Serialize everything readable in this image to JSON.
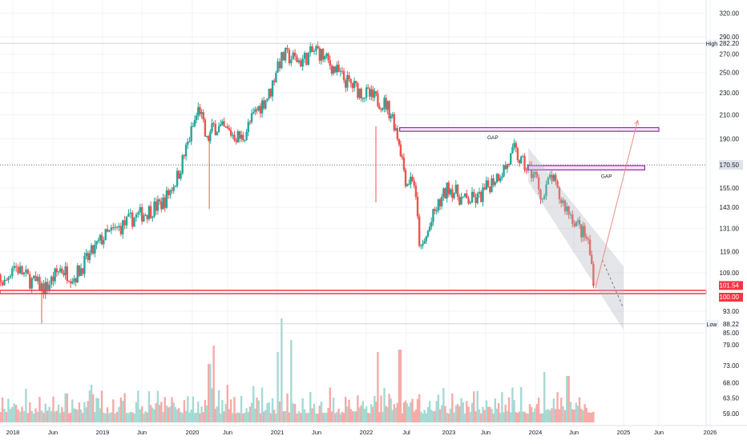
{
  "chart_data": {
    "type": "candlestick",
    "scale": "log",
    "grid": true,
    "y_ticks": [
      "320.00",
      "290.00",
      "270.00",
      "250.00",
      "230.00",
      "210.00",
      "190.00",
      "170.00",
      "155.00",
      "143.00",
      "131.00",
      "119.00",
      "109.00",
      "101.54",
      "100.00",
      "93.00",
      "85.00"
    ],
    "y_tick_values": [
      320,
      290,
      270,
      250,
      230,
      210,
      190,
      170,
      155,
      143,
      131,
      119,
      109,
      101.54,
      100,
      93,
      85
    ],
    "x_ticks": [
      "2018",
      "Jun",
      "2019",
      "Jun",
      "2020",
      "Jun",
      "2021",
      "Jun",
      "2022",
      "Jul",
      "2023",
      "Jun",
      "2024",
      "Jun",
      "2025",
      "Jun",
      "2026"
    ],
    "price_labels": {
      "high_tag": "High",
      "high_value": "282.20",
      "low_tag": "Low",
      "low_value": "88.22",
      "last_value": "170.50",
      "current_value": "101.54",
      "support_value": "100.00"
    },
    "volume_ticks": [
      "79.00",
      "73.00",
      "68.00",
      "63.50",
      "59.00"
    ],
    "volume_tick_values": [
      79,
      73,
      68,
      63.5,
      59
    ],
    "annotations": [
      {
        "type": "gap",
        "label": "GAP",
        "price_low": 196,
        "price_high": 199,
        "from": "2022-06",
        "to": "2025-06"
      },
      {
        "type": "gap",
        "label": "GAP",
        "price_low": 167,
        "price_high": 170,
        "from": "2023-12",
        "to": "2025-04"
      }
    ],
    "price_path": [
      {
        "date": "2017-10",
        "price": 111
      },
      {
        "date": "2017-12",
        "price": 104
      },
      {
        "date": "2018-01",
        "price": 113
      },
      {
        "date": "2018-03",
        "price": 106
      },
      {
        "date": "2018-05",
        "price": 102
      },
      {
        "date": "2018-07",
        "price": 111
      },
      {
        "date": "2018-09",
        "price": 107
      },
      {
        "date": "2018-11",
        "price": 116
      },
      {
        "date": "2019-01",
        "price": 126
      },
      {
        "date": "2019-03",
        "price": 131
      },
      {
        "date": "2019-05",
        "price": 137
      },
      {
        "date": "2019-07",
        "price": 141
      },
      {
        "date": "2019-09",
        "price": 146
      },
      {
        "date": "2019-11",
        "price": 163
      },
      {
        "date": "2020-01",
        "price": 198
      },
      {
        "date": "2020-02",
        "price": 217
      },
      {
        "date": "2020-03",
        "price": 187
      },
      {
        "date": "2020-04",
        "price": 200
      },
      {
        "date": "2020-06",
        "price": 196
      },
      {
        "date": "2020-08",
        "price": 190
      },
      {
        "date": "2020-10",
        "price": 213
      },
      {
        "date": "2020-12",
        "price": 230
      },
      {
        "date": "2021-01",
        "price": 259
      },
      {
        "date": "2021-02",
        "price": 268
      },
      {
        "date": "2021-04",
        "price": 262
      },
      {
        "date": "2021-06",
        "price": 275
      },
      {
        "date": "2021-08",
        "price": 258
      },
      {
        "date": "2021-10",
        "price": 242
      },
      {
        "date": "2021-12",
        "price": 232
      },
      {
        "date": "2022-02",
        "price": 225
      },
      {
        "date": "2022-04",
        "price": 219
      },
      {
        "date": "2022-05",
        "price": 207
      },
      {
        "date": "2022-06",
        "price": 186
      },
      {
        "date": "2022-07",
        "price": 158
      },
      {
        "date": "2022-08",
        "price": 163
      },
      {
        "date": "2022-09",
        "price": 118
      },
      {
        "date": "2022-11",
        "price": 140
      },
      {
        "date": "2023-01",
        "price": 156
      },
      {
        "date": "2023-03",
        "price": 147
      },
      {
        "date": "2023-05",
        "price": 148
      },
      {
        "date": "2023-07",
        "price": 160
      },
      {
        "date": "2023-09",
        "price": 170
      },
      {
        "date": "2023-10",
        "price": 181
      },
      {
        "date": "2023-11",
        "price": 172
      },
      {
        "date": "2024-01",
        "price": 163
      },
      {
        "date": "2024-02",
        "price": 147
      },
      {
        "date": "2024-03",
        "price": 164
      },
      {
        "date": "2024-04",
        "price": 150
      },
      {
        "date": "2024-06",
        "price": 136
      },
      {
        "date": "2024-08",
        "price": 124
      },
      {
        "date": "2024-09",
        "price": 102
      }
    ],
    "support_line": 100.0,
    "high_line": 282.2,
    "low_line": 88.22,
    "last_line": 170.5,
    "channel": {
      "from_date": "2023-12",
      "to_date": "2025-01",
      "upper_start": 183,
      "upper_end": 112,
      "lower_start": 159,
      "lower_end": 86
    },
    "projection": {
      "from_date": "2024-09",
      "from_price": 102,
      "to_date": "2025-03",
      "to_price": 205
    },
    "colors": {
      "up": "#26a69a",
      "down": "#ef5350",
      "volume_up": "#a6d9d3",
      "volume_down": "#f7aaa8",
      "gap": "#9c27b0",
      "gap_fill": "#f3e5f5",
      "support": "#f23645",
      "channel": "#b2b5be",
      "projection": "#f28b82",
      "grid": "#f0f3fa"
    }
  }
}
